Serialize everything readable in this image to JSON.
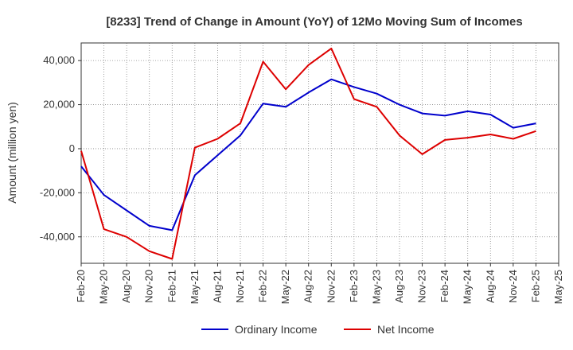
{
  "chart_data": {
    "type": "line",
    "title": "[8233]  Trend of Change in Amount (YoY) of 12Mo Moving Sum of Incomes",
    "ylabel": "Amount (million yen)",
    "xlabel": "",
    "ylim": [
      -52000,
      48000
    ],
    "yticks": [
      40000,
      20000,
      0,
      -20000,
      -40000
    ],
    "ytick_labels": [
      "40,000",
      "20,000",
      "0",
      "-20,000",
      "-40,000"
    ],
    "x": [
      "Feb-20",
      "May-20",
      "Aug-20",
      "Nov-20",
      "Feb-21",
      "May-21",
      "Aug-21",
      "Nov-21",
      "Feb-22",
      "May-22",
      "Aug-22",
      "Nov-22",
      "Feb-23",
      "May-23",
      "Aug-23",
      "Nov-23",
      "Feb-24",
      "May-24",
      "Aug-24",
      "Nov-24",
      "Feb-25",
      "May-25"
    ],
    "grid": true,
    "legend_position": "bottom-center",
    "series": [
      {
        "name": "Ordinary Income",
        "color": "#0000cc",
        "values": [
          -8000,
          -21000,
          -28000,
          -35000,
          -37000,
          -12000,
          -3000,
          6000,
          20500,
          19000,
          25500,
          31500,
          28000,
          25000,
          20000,
          16000,
          15000,
          17000,
          15500,
          9500,
          11500,
          null
        ]
      },
      {
        "name": "Net Income",
        "color": "#dd0000",
        "values": [
          -1000,
          -36500,
          -40000,
          -46500,
          -50000,
          500,
          4500,
          11500,
          39500,
          27000,
          38000,
          45500,
          22500,
          19000,
          6000,
          -2500,
          4000,
          5000,
          6500,
          4500,
          8000,
          null
        ]
      }
    ]
  }
}
